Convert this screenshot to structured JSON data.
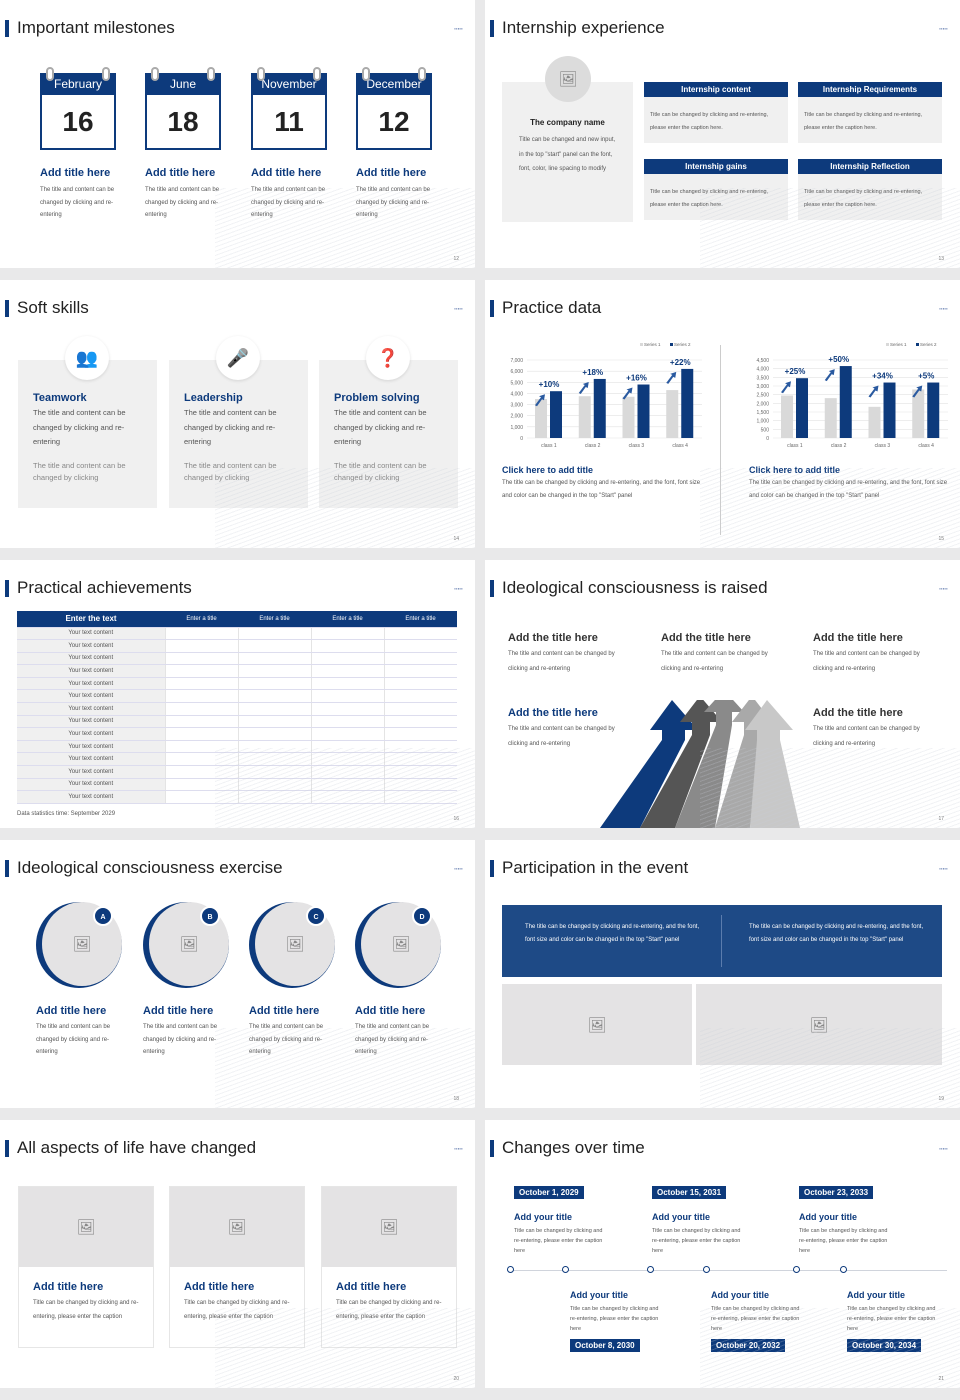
{
  "slides": {
    "s12": {
      "title": "Important milestones",
      "page": "12",
      "cards": [
        {
          "month": "February",
          "day": "16",
          "title": "Add title here",
          "text": "The title and content can be changed by clicking and re-entering"
        },
        {
          "month": "June",
          "day": "18",
          "title": "Add title here",
          "text": "The title and content can be changed by clicking and re-entering"
        },
        {
          "month": "November",
          "day": "11",
          "title": "Add title here",
          "text": "The title and content can be changed by clicking and re-entering"
        },
        {
          "month": "December",
          "day": "12",
          "title": "Add title here",
          "text": "The title and content can be changed by clicking and re-entering"
        }
      ]
    },
    "s13": {
      "title": "Internship experience",
      "page": "13",
      "company": "The company name",
      "company_text": "Title can be changed and new input, in the top \"start\" panel can the font, font, color, line spacing to modify",
      "boxes": [
        {
          "head": "Internship content",
          "text": "Title can be changed by clicking and re-entering, please enter the caption here."
        },
        {
          "head": "Internship Requirements",
          "text": "Title can be changed by clicking and re-entering, please enter the caption here."
        },
        {
          "head": "Internship gains",
          "text": "Title can be changed by clicking and re-entering, please enter the caption here."
        },
        {
          "head": "Internship Reflection",
          "text": "Title can be changed by clicking and re-entering, please enter the caption here."
        }
      ]
    },
    "s14": {
      "title": "Soft skills",
      "page": "14",
      "cards": [
        {
          "icon": "teamwork-icon",
          "title": "Teamwork",
          "text": "The title and content can be changed by clicking and re-entering",
          "sub": "The title and content can be changed by clicking"
        },
        {
          "icon": "leadership-icon",
          "title": "Leadership",
          "text": "The title and content can be changed by clicking and re-entering",
          "sub": "The title and content can be changed by clicking"
        },
        {
          "icon": "problem-solving-icon",
          "title": "Problem solving",
          "text": "The title and content can be changed by clicking and re-entering",
          "sub": "The title and content can be changed by clicking"
        }
      ]
    },
    "s15": {
      "title": "Practice data",
      "page": "15",
      "blocks": [
        {
          "title": "Click here to add title",
          "text": "The title can be changed by clicking and re-entering, and the font, font size and color can be changed in the top \"Start\" panel"
        },
        {
          "title": "Click here to add title",
          "text": "The title can be changed by clicking and re-entering, and the font, font size and color can be changed in the top \"Start\" panel"
        }
      ]
    },
    "s16": {
      "title": "Practical achievements",
      "page": "16",
      "headers": [
        "Enter the text",
        "Enter a title",
        "Enter a title",
        "Enter a title",
        "Enter a title"
      ],
      "row_label": "Your text content",
      "row_count": 14,
      "note": "Data statistics time: September 2029"
    },
    "s17": {
      "title": "Ideological consciousness is raised",
      "page": "17",
      "items": [
        {
          "title": "Add the title here",
          "text": "The title and content can be changed by clicking and re-entering"
        },
        {
          "title": "Add the title here",
          "text": "The title and content can be changed by clicking and re-entering"
        },
        {
          "title": "Add the title here",
          "text": "The title and content can be changed by clicking and re-entering"
        },
        {
          "title": "Add the title here",
          "text": "The title and content can be changed by clicking and re-entering"
        },
        {
          "title": "Add the title here",
          "text": "The title and content can be changed by clicking and re-entering"
        }
      ]
    },
    "s18": {
      "title": "Ideological consciousness exercise",
      "page": "18",
      "cards": [
        {
          "badge": "A",
          "title": "Add title here",
          "text": "The title and content can be changed by clicking and re-entering"
        },
        {
          "badge": "B",
          "title": "Add title here",
          "text": "The title and content can be changed by clicking and re-entering"
        },
        {
          "badge": "C",
          "title": "Add title here",
          "text": "The title and content can be changed by clicking and re-entering"
        },
        {
          "badge": "D",
          "title": "Add title here",
          "text": "The title and content can be changed by clicking and re-entering"
        }
      ]
    },
    "s19": {
      "title": "Participation in the event",
      "page": "19",
      "banner": [
        "The title can be changed by clicking and re-entering, and the font, font size and color can be changed in the top \"Start\" panel",
        "The title can be changed by clicking and re-entering, and the font, font size and color can be changed in the top \"Start\" panel"
      ]
    },
    "s20": {
      "title": "All aspects of life have changed",
      "page": "20",
      "cards": [
        {
          "title": "Add title here",
          "text": "Title can be changed by clicking and re-entering, please enter the caption"
        },
        {
          "title": "Add title here",
          "text": "Title can be changed by clicking and re-entering, please enter the caption"
        },
        {
          "title": "Add title here",
          "text": "Title can be changed by clicking and re-entering, please enter the caption"
        }
      ]
    },
    "s21": {
      "title": "Changes over time",
      "page": "21",
      "events": [
        {
          "date": "October 1, 2029",
          "title": "Add your title",
          "text": "Title can be changed by clicking and re-entering, please enter the caption here"
        },
        {
          "date": "October 8, 2030",
          "title": "Add your title",
          "text": "Title can be changed by clicking and re-entering, please enter the caption here"
        },
        {
          "date": "October 15, 2031",
          "title": "Add your title",
          "text": "Title can be changed by clicking and re-entering, please enter the caption here"
        },
        {
          "date": "October 20, 2032",
          "title": "Add your title",
          "text": "Title can be changed by clicking and re-entering, please enter the caption here"
        },
        {
          "date": "October 23, 2033",
          "title": "Add your title",
          "text": "Title can be changed by clicking and re-entering, please enter the caption here"
        },
        {
          "date": "October 30, 2034",
          "title": "Add your title",
          "text": "Title can be changed by clicking and re-entering, please enter the caption here"
        }
      ]
    }
  },
  "colors": {
    "brand": "#0d3a7c",
    "light": "#d9d9d9",
    "panel": "#f0f0f0"
  },
  "chart_data": [
    {
      "type": "bar",
      "categories": [
        "class 1",
        "class 2",
        "class 3",
        "class 4"
      ],
      "series": [
        {
          "name": "Series 1",
          "values": [
            3500,
            3750,
            3700,
            4300
          ]
        },
        {
          "name": "Series 2",
          "values": [
            4200,
            5300,
            4800,
            6200
          ]
        }
      ],
      "labels": [
        "+10%",
        "+18%",
        "+16%",
        "+22%"
      ],
      "ylim": [
        0,
        7000
      ],
      "yticks": [
        "0",
        "1,000",
        "2,000",
        "3,000",
        "4,000",
        "5,000",
        "6,000",
        "7,000"
      ],
      "legend": "top-right",
      "grid": true
    },
    {
      "type": "bar",
      "categories": [
        "class 1",
        "class 2",
        "class 3",
        "class 4"
      ],
      "series": [
        {
          "name": "Series 1",
          "values": [
            2450,
            2300,
            1800,
            2800
          ]
        },
        {
          "name": "Series 2",
          "values": [
            3450,
            4150,
            3200,
            3200
          ]
        }
      ],
      "labels": [
        "+25%",
        "+50%",
        "+34%",
        "+5%"
      ],
      "ylim": [
        0,
        4500
      ],
      "yticks": [
        "0",
        "500",
        "1,000",
        "1,500",
        "2,000",
        "2,500",
        "3,000",
        "3,500",
        "4,000",
        "4,500"
      ],
      "legend": "top-right",
      "grid": true
    }
  ]
}
